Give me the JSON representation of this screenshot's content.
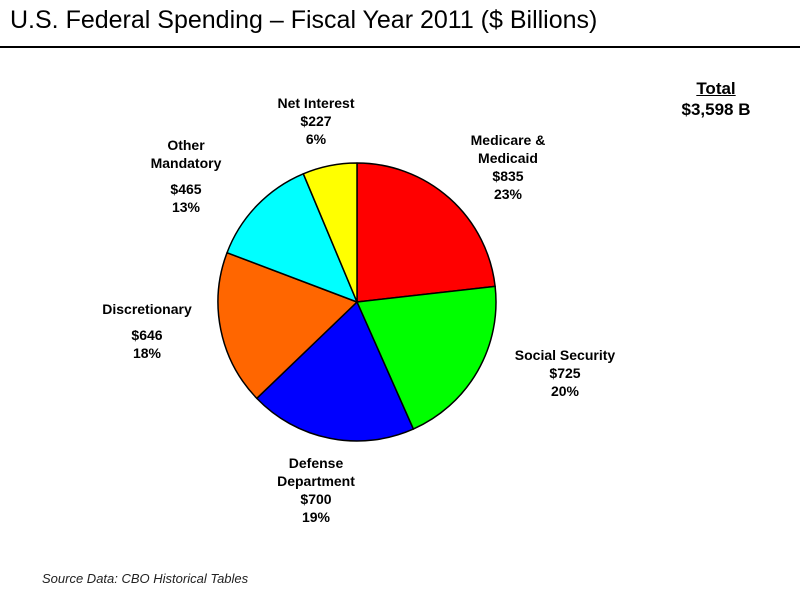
{
  "title": "U.S. Federal Spending – Fiscal Year 2011 ($ Billions)",
  "total": {
    "label": "Total",
    "value": "$3,598 B"
  },
  "source": "Source Data: CBO Historical Tables",
  "chart_data": {
    "type": "pie",
    "title": "U.S. Federal Spending – Fiscal Year 2011 ($ Billions)",
    "start": "12 o'clock, clockwise",
    "slices": [
      {
        "key": "medicare",
        "name": "Medicare & Medicaid",
        "name_lines": [
          "Medicare &",
          "Medicaid"
        ],
        "value": 835,
        "value_label": "$835",
        "percent": 23,
        "percent_label": "23%",
        "color": "#ff0000"
      },
      {
        "key": "social-security",
        "name": "Social Security",
        "name_lines": [
          "Social Security"
        ],
        "value": 725,
        "value_label": "$725",
        "percent": 20,
        "percent_label": "20%",
        "color": "#00ff00"
      },
      {
        "key": "defense",
        "name": "Defense Department",
        "name_lines": [
          "Defense",
          "Department"
        ],
        "value": 700,
        "value_label": "$700",
        "percent": 19,
        "percent_label": "19%",
        "color": "#0000ff"
      },
      {
        "key": "discretionary",
        "name": "Discretionary",
        "name_lines": [
          "Discretionary"
        ],
        "value": 646,
        "value_label": "$646",
        "percent": 18,
        "percent_label": "18%",
        "color": "#ff6600"
      },
      {
        "key": "other-mandatory",
        "name": "Other Mandatory",
        "name_lines": [
          "Other",
          "Mandatory"
        ],
        "value": 465,
        "value_label": "$465",
        "percent": 13,
        "percent_label": "13%",
        "color": "#00ffff"
      },
      {
        "key": "net-interest",
        "name": "Net Interest",
        "name_lines": [
          "Net Interest"
        ],
        "value": 227,
        "value_label": "$227",
        "percent": 6,
        "percent_label": "6%",
        "color": "#ffff00"
      }
    ]
  }
}
